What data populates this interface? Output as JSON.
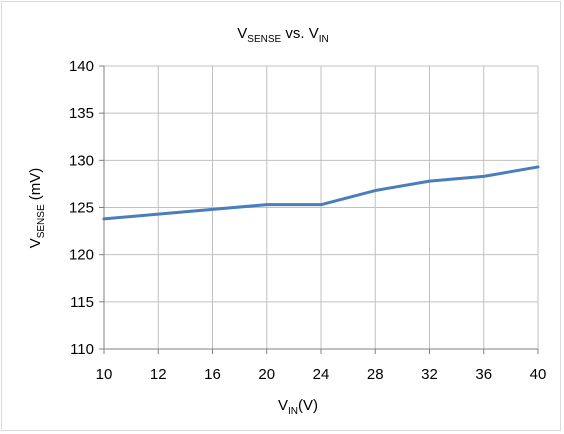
{
  "chart_data": {
    "type": "line",
    "title": {
      "main": "V",
      "main_sub": "SENSE",
      "mid": " vs. V",
      "end_sub": "IN"
    },
    "xlabel": {
      "main": "V",
      "sub": "IN",
      "end": "(V)"
    },
    "ylabel": {
      "main": "V",
      "sub": "SENSE",
      "end": " (mV)"
    },
    "x_categories": [
      "10",
      "12",
      "16",
      "20",
      "24",
      "28",
      "32",
      "36",
      "40"
    ],
    "series": [
      {
        "values": [
          123.8,
          124.3,
          124.8,
          125.3,
          125.3,
          126.8,
          127.8,
          128.3,
          129.3
        ]
      }
    ],
    "ylim": [
      110,
      140
    ],
    "y_ticks": [
      110,
      115,
      120,
      125,
      130,
      135,
      140
    ],
    "grid": true,
    "legend": "none",
    "colors": {
      "line": "#4a7ebb",
      "grid": "#c0c0c0",
      "axis": "#808080"
    }
  }
}
